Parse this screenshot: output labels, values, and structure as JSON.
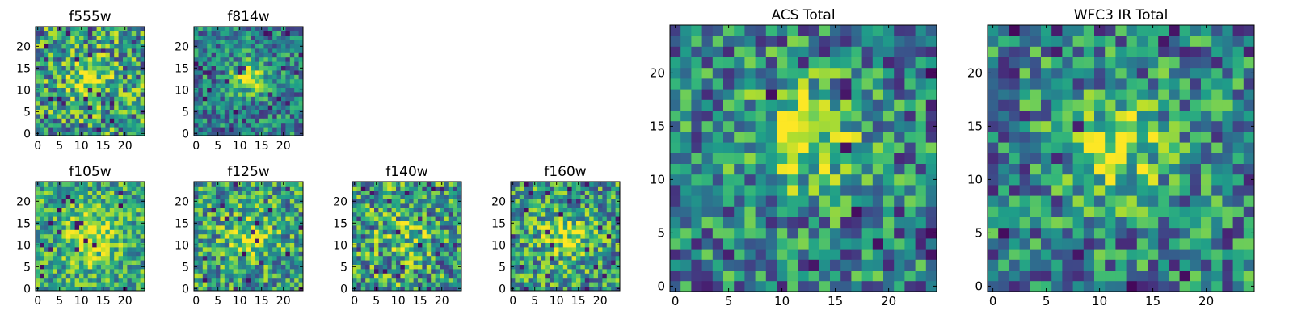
{
  "colormap": "viridis",
  "figure_background": "#ffffff",
  "chart_data": [
    {
      "type": "heatmap",
      "title": "f555w",
      "grid_size": 25,
      "xticks": [
        0,
        5,
        10,
        15,
        20
      ],
      "yticks": [
        0,
        5,
        10,
        15,
        20
      ],
      "xlim": [
        -0.5,
        24.5
      ],
      "ylim": [
        -0.5,
        24.5
      ],
      "blob_center": [
        12,
        13
      ],
      "blob_sigma": 3.0,
      "blob_amp": 0.35,
      "noise": 0.4,
      "base": 0.55,
      "seed": 11
    },
    {
      "type": "heatmap",
      "title": "f814w",
      "grid_size": 25,
      "xticks": [
        0,
        5,
        10,
        15,
        20
      ],
      "yticks": [
        0,
        5,
        10,
        15,
        20
      ],
      "xlim": [
        -0.5,
        24.5
      ],
      "ylim": [
        -0.5,
        24.5
      ],
      "blob_center": [
        12,
        13
      ],
      "blob_sigma": 2.5,
      "blob_amp": 0.55,
      "noise": 0.3,
      "base": 0.45,
      "seed": 23
    },
    {
      "type": "heatmap",
      "title": "f105w",
      "grid_size": 25,
      "xticks": [
        0,
        5,
        10,
        15,
        20
      ],
      "yticks": [
        0,
        5,
        10,
        15,
        20
      ],
      "xlim": [
        -0.5,
        24.5
      ],
      "ylim": [
        -0.5,
        24.5
      ],
      "blob_center": [
        12,
        12
      ],
      "blob_sigma": 4.0,
      "blob_amp": 0.35,
      "noise": 0.3,
      "base": 0.6,
      "seed": 37
    },
    {
      "type": "heatmap",
      "title": "f125w",
      "grid_size": 25,
      "xticks": [
        0,
        5,
        10,
        15,
        20
      ],
      "yticks": [
        0,
        5,
        10,
        15,
        20
      ],
      "xlim": [
        -0.5,
        24.5
      ],
      "ylim": [
        -0.5,
        24.5
      ],
      "blob_center": [
        12,
        12
      ],
      "blob_sigma": 4.0,
      "blob_amp": 0.25,
      "noise": 0.35,
      "base": 0.55,
      "seed": 41
    },
    {
      "type": "heatmap",
      "title": "f140w",
      "grid_size": 25,
      "xticks": [
        0,
        5,
        10,
        15,
        20
      ],
      "yticks": [
        0,
        5,
        10,
        15,
        20
      ],
      "xlim": [
        -0.5,
        24.5
      ],
      "ylim": [
        -0.5,
        24.5
      ],
      "blob_center": [
        12,
        12
      ],
      "blob_sigma": 4.0,
      "blob_amp": 0.2,
      "noise": 0.4,
      "base": 0.55,
      "seed": 53
    },
    {
      "type": "heatmap",
      "title": "f160w",
      "grid_size": 25,
      "xticks": [
        0,
        5,
        10,
        15,
        20
      ],
      "yticks": [
        0,
        5,
        10,
        15,
        20
      ],
      "xlim": [
        -0.5,
        24.5
      ],
      "ylim": [
        -0.5,
        24.5
      ],
      "blob_center": [
        12,
        12
      ],
      "blob_sigma": 4.0,
      "blob_amp": 0.3,
      "noise": 0.35,
      "base": 0.55,
      "seed": 67
    },
    {
      "type": "heatmap",
      "title": "ACS Total",
      "grid_size": 25,
      "xticks": [
        0,
        5,
        10,
        15,
        20
      ],
      "yticks": [
        0,
        5,
        10,
        15,
        20
      ],
      "xlim": [
        -0.5,
        24.5
      ],
      "ylim": [
        -0.5,
        24.5
      ],
      "blob_center": [
        12,
        14
      ],
      "blob_sigma": 3.5,
      "blob_amp": 0.45,
      "noise": 0.35,
      "base": 0.45,
      "seed": 79
    },
    {
      "type": "heatmap",
      "title": "WFC3 IR Total",
      "grid_size": 25,
      "xticks": [
        0,
        5,
        10,
        15,
        20
      ],
      "yticks": [
        0,
        5,
        10,
        15,
        20
      ],
      "xlim": [
        -0.5,
        24.5
      ],
      "ylim": [
        -0.5,
        24.5
      ],
      "blob_center": [
        12,
        13
      ],
      "blob_sigma": 3.5,
      "blob_amp": 0.4,
      "noise": 0.35,
      "base": 0.45,
      "seed": 97
    }
  ]
}
